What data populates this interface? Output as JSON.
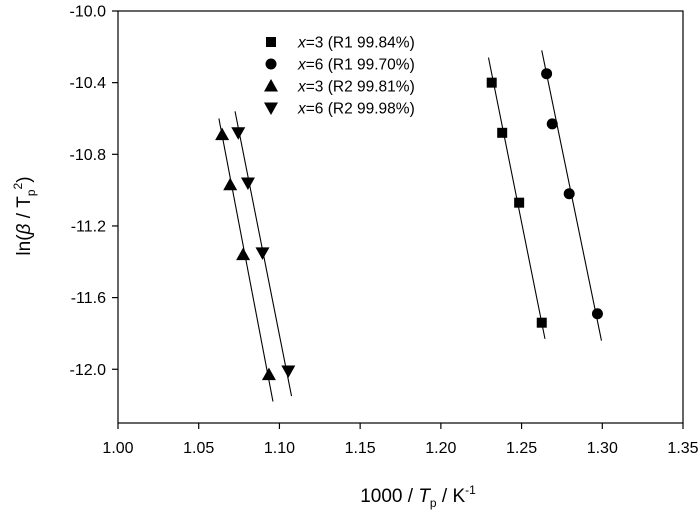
{
  "chart_data": {
    "type": "scatter",
    "xlabel": {
      "prefix": "1000 / ",
      "var": "T",
      "sub": "p",
      "unit": " / K",
      "sup": "-1"
    },
    "ylabel": {
      "prefix": "ln(",
      "greek": "β",
      "mid": " / T",
      "sub": "p",
      "sup": "2",
      "suffix": ")"
    },
    "xlim": [
      1.0,
      1.35
    ],
    "ylim": [
      -12.3,
      -10.0
    ],
    "xticks": [
      "1.00",
      "1.05",
      "1.10",
      "1.15",
      "1.20",
      "1.25",
      "1.30",
      "1.35"
    ],
    "xtick_values": [
      1.0,
      1.05,
      1.1,
      1.15,
      1.2,
      1.25,
      1.3,
      1.35
    ],
    "yticks": [
      "-10.0",
      "-10.4",
      "-10.8",
      "-11.2",
      "-11.6",
      "-12.0"
    ],
    "ytick_values": [
      -10.0,
      -10.4,
      -10.8,
      -11.2,
      -11.6,
      -12.0
    ],
    "grid": false,
    "legend_position": "top-center",
    "series": [
      {
        "name": "x=3 (R1 99.84%)",
        "legend_var": "x",
        "legend_rest": "=3 (R1 99.84%)",
        "marker": "square",
        "x": [
          1.2315,
          1.238,
          1.2485,
          1.2625
        ],
        "y": [
          -10.4,
          -10.68,
          -11.07,
          -11.74
        ],
        "fit": {
          "x": [
            1.2295,
            1.2645
          ],
          "y": [
            -10.26,
            -11.83
          ]
        }
      },
      {
        "name": "x=6 (R1 99.70%)",
        "legend_var": "x",
        "legend_rest": "=6 (R1 99.70%)",
        "marker": "circle",
        "x": [
          1.2655,
          1.269,
          1.2795,
          1.297
        ],
        "y": [
          -10.35,
          -10.63,
          -11.02,
          -11.69
        ],
        "fit": {
          "x": [
            1.2625,
            1.2995
          ],
          "y": [
            -10.22,
            -11.84
          ]
        }
      },
      {
        "name": "x=3 (R2 99.81%)",
        "legend_var": "x",
        "legend_rest": "=3 (R2 99.81%)",
        "marker": "triangle-up",
        "x": [
          1.0645,
          1.0695,
          1.0775,
          1.0935
        ],
        "y": [
          -10.69,
          -10.97,
          -11.36,
          -12.03
        ],
        "fit": {
          "x": [
            1.0625,
            1.096
          ],
          "y": [
            -10.6,
            -12.18
          ]
        }
      },
      {
        "name": "x=6 (R2 99.98%)",
        "legend_var": "x",
        "legend_rest": "=6 (R2 99.98%)",
        "marker": "triangle-down",
        "x": [
          1.0745,
          1.0805,
          1.0895,
          1.1055
        ],
        "y": [
          -10.68,
          -10.96,
          -11.35,
          -12.01
        ],
        "fit": {
          "x": [
            1.0725,
            1.1075
          ],
          "y": [
            -10.56,
            -12.15
          ]
        }
      }
    ]
  }
}
